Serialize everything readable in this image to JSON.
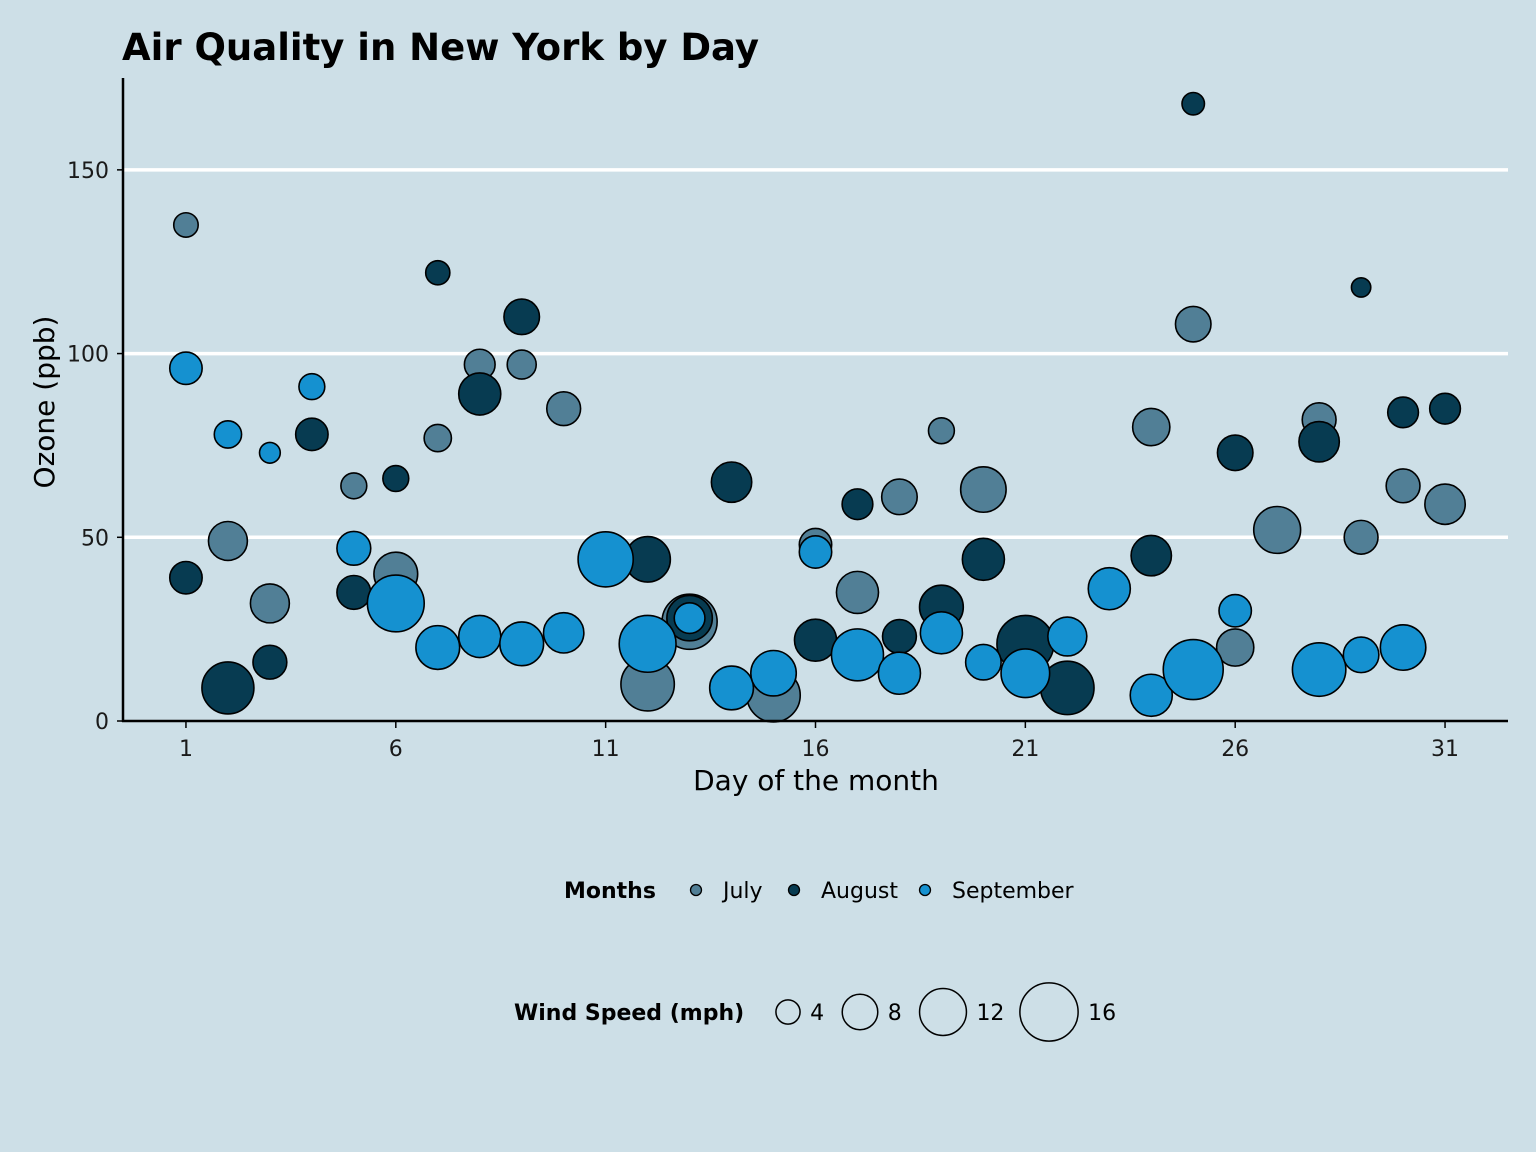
{
  "chart_data": {
    "type": "scatter",
    "title": "Air Quality in New York by Day",
    "xlabel": "Day of the month",
    "ylabel": "Ozone (ppb)",
    "xlim": [
      -0.5,
      32.5
    ],
    "ylim": [
      0,
      175
    ],
    "xticks": [
      1,
      6,
      11,
      16,
      21,
      26,
      31
    ],
    "yticks": [
      0,
      50,
      100,
      150
    ],
    "grid": "horizontal",
    "legend": {
      "color_title": "Months",
      "size_title": "Wind Speed (mph)",
      "size_values": [
        4,
        8,
        12,
        16
      ],
      "placement": "bottom"
    },
    "series": [
      {
        "name": "July",
        "color": "#517f96",
        "points": [
          {
            "x": 1,
            "y": 135,
            "wind": 4.1
          },
          {
            "x": 2,
            "y": 49,
            "wind": 9.2
          },
          {
            "x": 3,
            "y": 32,
            "wind": 9.2
          },
          {
            "x": 5,
            "y": 64,
            "wind": 4.6
          },
          {
            "x": 6,
            "y": 40,
            "wind": 10.9
          },
          {
            "x": 7,
            "y": 77,
            "wind": 5.1
          },
          {
            "x": 8,
            "y": 97,
            "wind": 6.3
          },
          {
            "x": 9,
            "y": 97,
            "wind": 5.7
          },
          {
            "x": 10,
            "y": 85,
            "wind": 7.4
          },
          {
            "x": 12,
            "y": 10,
            "wind": 14.3
          },
          {
            "x": 13,
            "y": 27,
            "wind": 14.9
          },
          {
            "x": 15,
            "y": 7,
            "wind": 14.3
          },
          {
            "x": 16,
            "y": 48,
            "wind": 6.9
          },
          {
            "x": 17,
            "y": 35,
            "wind": 10.3
          },
          {
            "x": 18,
            "y": 61,
            "wind": 8.0
          },
          {
            "x": 19,
            "y": 79,
            "wind": 4.6
          },
          {
            "x": 20,
            "y": 63,
            "wind": 11.5
          },
          {
            "x": 24,
            "y": 80,
            "wind": 8.6
          },
          {
            "x": 25,
            "y": 108,
            "wind": 8.0
          },
          {
            "x": 26,
            "y": 20,
            "wind": 8.6
          },
          {
            "x": 27,
            "y": 52,
            "wind": 12.0
          },
          {
            "x": 28,
            "y": 82,
            "wind": 7.4
          },
          {
            "x": 29,
            "y": 50,
            "wind": 7.4
          },
          {
            "x": 30,
            "y": 64,
            "wind": 7.4
          },
          {
            "x": 31,
            "y": 59,
            "wind": 9.7
          }
        ]
      },
      {
        "name": "August",
        "color": "#073b51",
        "points": [
          {
            "x": 1,
            "y": 39,
            "wind": 6.9
          },
          {
            "x": 2,
            "y": 9,
            "wind": 13.8
          },
          {
            "x": 3,
            "y": 16,
            "wind": 7.4
          },
          {
            "x": 4,
            "y": 78,
            "wind": 6.9
          },
          {
            "x": 5,
            "y": 35,
            "wind": 7.4
          },
          {
            "x": 6,
            "y": 66,
            "wind": 4.6
          },
          {
            "x": 7,
            "y": 122,
            "wind": 4.0
          },
          {
            "x": 8,
            "y": 89,
            "wind": 10.3
          },
          {
            "x": 9,
            "y": 110,
            "wind": 8.0
          },
          {
            "x": 12,
            "y": 44,
            "wind": 11.5
          },
          {
            "x": 13,
            "y": 28,
            "wind": 11.5
          },
          {
            "x": 14,
            "y": 65,
            "wind": 9.7
          },
          {
            "x": 16,
            "y": 22,
            "wind": 10.3
          },
          {
            "x": 17,
            "y": 59,
            "wind": 6.3
          },
          {
            "x": 18,
            "y": 23,
            "wind": 7.4
          },
          {
            "x": 19,
            "y": 31,
            "wind": 10.9
          },
          {
            "x": 20,
            "y": 44,
            "wind": 10.3
          },
          {
            "x": 21,
            "y": 21,
            "wind": 15.5
          },
          {
            "x": 22,
            "y": 9,
            "wind": 14.3
          },
          {
            "x": 24,
            "y": 45,
            "wind": 9.7
          },
          {
            "x": 25,
            "y": 168,
            "wind": 3.4
          },
          {
            "x": 26,
            "y": 73,
            "wind": 8.0
          },
          {
            "x": 28,
            "y": 76,
            "wind": 9.7
          },
          {
            "x": 29,
            "y": 118,
            "wind": 2.3
          },
          {
            "x": 30,
            "y": 84,
            "wind": 6.3
          },
          {
            "x": 31,
            "y": 85,
            "wind": 6.3
          }
        ]
      },
      {
        "name": "September",
        "color": "#1591d0",
        "points": [
          {
            "x": 1,
            "y": 96,
            "wind": 6.9
          },
          {
            "x": 2,
            "y": 78,
            "wind": 5.1
          },
          {
            "x": 3,
            "y": 73,
            "wind": 2.8
          },
          {
            "x": 4,
            "y": 91,
            "wind": 4.6
          },
          {
            "x": 5,
            "y": 47,
            "wind": 7.4
          },
          {
            "x": 6,
            "y": 32,
            "wind": 15.5
          },
          {
            "x": 7,
            "y": 20,
            "wind": 10.9
          },
          {
            "x": 8,
            "y": 23,
            "wind": 10.3
          },
          {
            "x": 9,
            "y": 21,
            "wind": 10.9
          },
          {
            "x": 10,
            "y": 24,
            "wind": 9.7
          },
          {
            "x": 11,
            "y": 44,
            "wind": 14.9
          },
          {
            "x": 12,
            "y": 21,
            "wind": 15.5
          },
          {
            "x": 13,
            "y": 28,
            "wind": 6.3
          },
          {
            "x": 14,
            "y": 9,
            "wind": 10.9
          },
          {
            "x": 15,
            "y": 13,
            "wind": 11.5
          },
          {
            "x": 16,
            "y": 46,
            "wind": 6.9
          },
          {
            "x": 17,
            "y": 18,
            "wind": 13.8
          },
          {
            "x": 18,
            "y": 13,
            "wind": 10.3
          },
          {
            "x": 19,
            "y": 24,
            "wind": 10.3
          },
          {
            "x": 20,
            "y": 16,
            "wind": 8.0
          },
          {
            "x": 21,
            "y": 13,
            "wind": 12.6
          },
          {
            "x": 22,
            "y": 23,
            "wind": 9.2
          },
          {
            "x": 23,
            "y": 36,
            "wind": 10.3
          },
          {
            "x": 24,
            "y": 7,
            "wind": 10.3
          },
          {
            "x": 25,
            "y": 14,
            "wind": 16.6
          },
          {
            "x": 26,
            "y": 30,
            "wind": 6.9
          },
          {
            "x": 28,
            "y": 14,
            "wind": 14.3
          },
          {
            "x": 29,
            "y": 18,
            "wind": 8.0
          },
          {
            "x": 30,
            "y": 20,
            "wind": 11.5
          }
        ]
      }
    ]
  }
}
